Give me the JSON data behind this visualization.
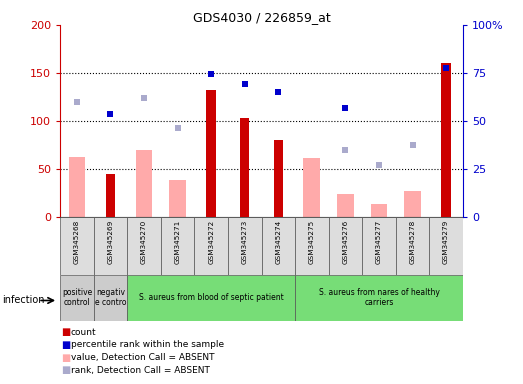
{
  "title": "GDS4030 / 226859_at",
  "samples": [
    "GSM345268",
    "GSM345269",
    "GSM345270",
    "GSM345271",
    "GSM345272",
    "GSM345273",
    "GSM345274",
    "GSM345275",
    "GSM345276",
    "GSM345277",
    "GSM345278",
    "GSM345279"
  ],
  "count_values": [
    null,
    45,
    null,
    null,
    132,
    103,
    80,
    null,
    null,
    null,
    null,
    160
  ],
  "rank_values": [
    null,
    107,
    null,
    null,
    149,
    139,
    130,
    null,
    114,
    null,
    null,
    155
  ],
  "absent_value": [
    62,
    null,
    70,
    39,
    null,
    null,
    null,
    61,
    24,
    14,
    27,
    null
  ],
  "absent_rank": [
    120,
    null,
    124,
    93,
    null,
    null,
    null,
    null,
    70,
    54,
    75,
    null
  ],
  "count_color": "#cc0000",
  "rank_color": "#0000cc",
  "absent_value_color": "#ffaaaa",
  "absent_rank_color": "#aaaacc",
  "ylim_left": [
    0,
    200
  ],
  "yticks_left": [
    0,
    50,
    100,
    150,
    200
  ],
  "yticklabels_left": [
    "0",
    "50",
    "100",
    "150",
    "200"
  ],
  "yticks_right": [
    0,
    50,
    100,
    150,
    200
  ],
  "yticklabels_right": [
    "0",
    "25",
    "50",
    "75",
    "100%"
  ],
  "groups": [
    {
      "label": "positive\ncontrol",
      "start": 0,
      "end": 1,
      "color": "#cccccc"
    },
    {
      "label": "negativ\ne contro",
      "start": 1,
      "end": 2,
      "color": "#cccccc"
    },
    {
      "label": "S. aureus from blood of septic patient",
      "start": 2,
      "end": 7,
      "color": "#77dd77"
    },
    {
      "label": "S. aureus from nares of healthy\ncarriers",
      "start": 7,
      "end": 12,
      "color": "#77dd77"
    }
  ],
  "infection_label": "infection",
  "marker_size": 5,
  "grid_linestyle": ":",
  "grid_color": "#000000"
}
